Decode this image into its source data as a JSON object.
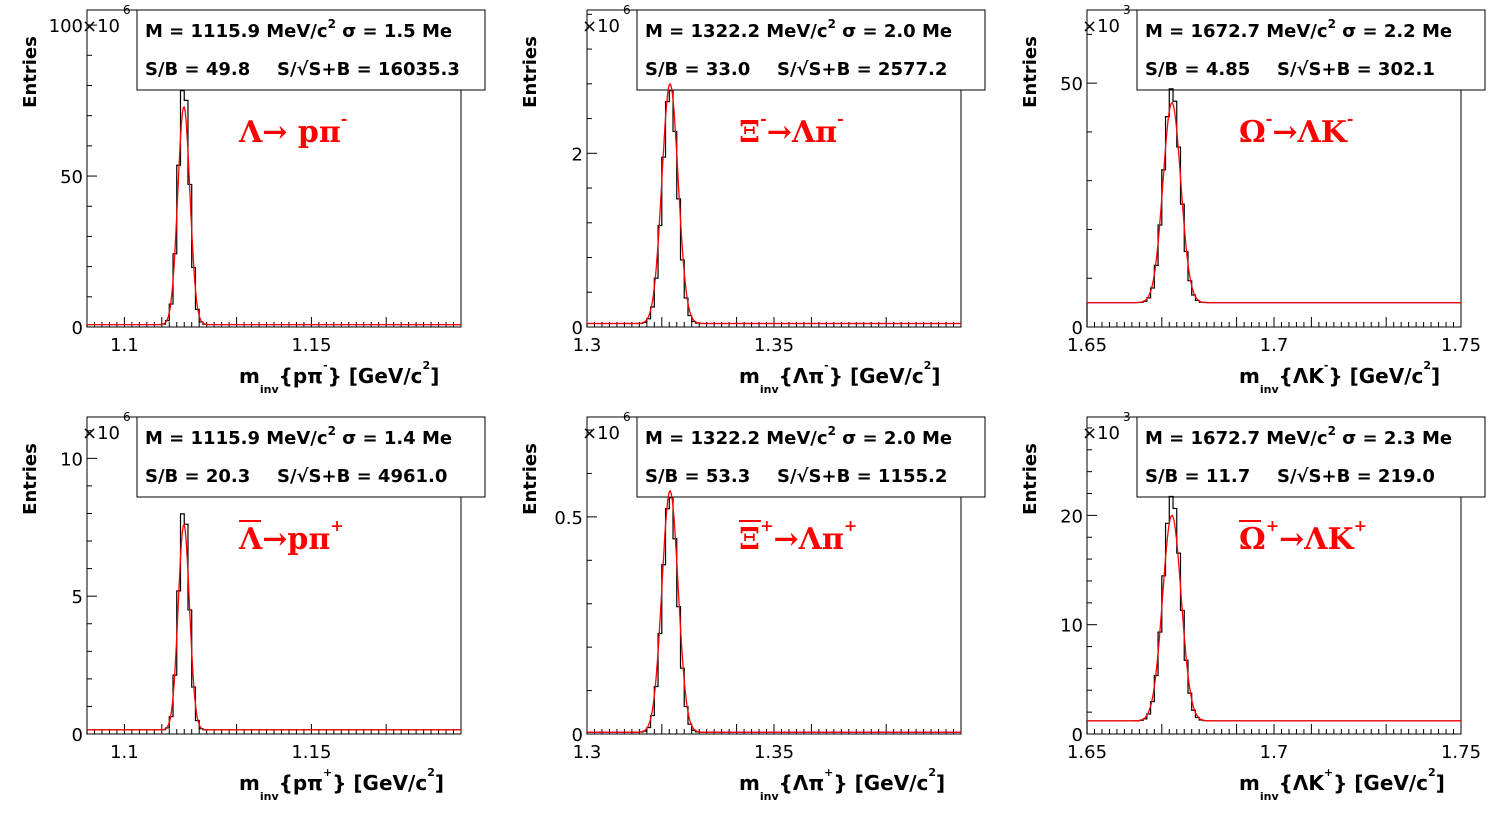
{
  "chart_data": [
    {
      "type": "line",
      "ylabel": "Entries",
      "xlabel": "m_inv{pπ⁻} [GeV/c²]",
      "xlabel_parts": {
        "main": "m",
        "sub": "inv",
        "rest": "{pπ",
        "sup": "-",
        "close": "} [GeV/c",
        "sup2": "2",
        "end": "]"
      },
      "y_multiplier_base": "×10",
      "y_multiplier_exp": "6",
      "xlim": [
        1.09,
        1.19
      ],
      "ylim": [
        0,
        105
      ],
      "xticks": [
        1.1,
        1.15
      ],
      "xtick_labels": [
        "1.1",
        "1.15"
      ],
      "yticks": [
        0,
        50,
        100
      ],
      "ytick_labels": [
        "0",
        "50",
        "100"
      ],
      "stats": {
        "line1": "M = 1115.9 MeV/c",
        "line1_sup": "2",
        "line1_rest": " σ = 1.5 Me",
        "line2": "S/B = 49.8",
        "line2_rest": "S/",
        "line2_sqrt": "S+B",
        "line2_val": " = 16035.3"
      },
      "annotation": {
        "main": "Λ→ pπ",
        "sup": "-",
        "bar": false
      },
      "peak_mass": 1.1159,
      "sigma": 0.0015,
      "fit_peak": 73,
      "hist_peak": 81,
      "background": 0.8,
      "series": [
        {
          "values": []
        }
      ]
    },
    {
      "type": "line",
      "ylabel": "Entries",
      "xlabel": "m_inv{Λπ⁻} [GeV/c²]",
      "xlabel_parts": {
        "main": "m",
        "sub": "inv",
        "rest": "{Λπ",
        "sup": "-",
        "close": "} [GeV/c",
        "sup2": "2",
        "end": "]"
      },
      "y_multiplier_base": "×10",
      "y_multiplier_exp": "6",
      "xlim": [
        1.3,
        1.4
      ],
      "ylim": [
        0,
        3.65
      ],
      "xticks": [
        1.3,
        1.35
      ],
      "xtick_labels": [
        "1.3",
        "1.35"
      ],
      "yticks": [
        0,
        2
      ],
      "ytick_labels": [
        "0",
        "2"
      ],
      "stats": {
        "line1": "M = 1322.2 MeV/c",
        "line1_sup": "2",
        "line1_rest": " σ = 2.0 Me",
        "line2": "S/B = 33.0",
        "line2_rest": "S/",
        "line2_sqrt": "S+B",
        "line2_val": " = 2577.2"
      },
      "annotation": {
        "main": "Ξ",
        "sup": "-",
        "main2": "→Λπ",
        "sup2": "-",
        "bar": false
      },
      "peak_mass": 1.3222,
      "sigma": 0.002,
      "fit_peak": 2.8,
      "hist_peak": 2.75,
      "background": 0.04
    },
    {
      "type": "line",
      "ylabel": "Entries",
      "xlabel": "m_inv{ΛK⁻} [GeV/c²]",
      "xlabel_parts": {
        "main": "m",
        "sub": "inv",
        "rest": "{ΛK",
        "sup": "-",
        "close": "} [GeV/c",
        "sup2": "2",
        "end": "]"
      },
      "y_multiplier_base": "×10",
      "y_multiplier_exp": "3",
      "xlim": [
        1.65,
        1.75
      ],
      "ylim": [
        0,
        65
      ],
      "xticks": [
        1.65,
        1.7,
        1.75
      ],
      "xtick_labels": [
        "1.65",
        "1.7",
        "1.75"
      ],
      "yticks": [
        0,
        50
      ],
      "ytick_labels": [
        "0",
        "50"
      ],
      "stats": {
        "line1": "M = 1672.7 MeV/c",
        "line1_sup": "2",
        "line1_rest": " σ = 2.2 Me",
        "line2": "S/B = 4.85",
        "line2_rest": "S/",
        "line2_sqrt": "S+B",
        "line2_val": " = 302.1"
      },
      "annotation": {
        "main": "Ω",
        "sup": "-",
        "main2": "→ΛK",
        "sup2": "-",
        "bar": false
      },
      "peak_mass": 1.6727,
      "sigma": 0.0022,
      "fit_peak": 46,
      "hist_peak": 49,
      "background": 5
    },
    {
      "type": "line",
      "ylabel": "Entries",
      "xlabel": "m_inv{p̄π⁺} [GeV/c²]",
      "xlabel_parts": {
        "main": "m",
        "sub": "inv",
        "rest": "{pπ",
        "sup": "+",
        "close": "} [GeV/c",
        "sup2": "2",
        "end": "]"
      },
      "y_multiplier_base": "×10",
      "y_multiplier_exp": "6",
      "xlim": [
        1.09,
        1.19
      ],
      "ylim": [
        0,
        11.5
      ],
      "xticks": [
        1.1,
        1.15
      ],
      "xtick_labels": [
        "1.1",
        "1.15"
      ],
      "yticks": [
        0,
        5,
        10
      ],
      "ytick_labels": [
        "0",
        "5",
        "10"
      ],
      "stats": {
        "line1": "M = 1115.9 MeV/c",
        "line1_sup": "2",
        "line1_rest": " σ = 1.4 Me",
        "line2": "S/B = 20.3",
        "line2_rest": "S/",
        "line2_sqrt": "S+B",
        "line2_val": " = 4961.0"
      },
      "annotation": {
        "main": "Λ→pπ",
        "sup": "+",
        "bar": true
      },
      "peak_mass": 1.1159,
      "sigma": 0.0014,
      "fit_peak": 7.6,
      "hist_peak": 8.3,
      "background": 0.15
    },
    {
      "type": "line",
      "ylabel": "Entries",
      "xlabel": "m_inv{Λ̄π⁺} [GeV/c²]",
      "xlabel_parts": {
        "main": "m",
        "sub": "inv",
        "rest": "{Λπ",
        "sup": "+",
        "close": "} [GeV/c",
        "sup2": "2",
        "end": "]"
      },
      "y_multiplier_base": "×10",
      "y_multiplier_exp": "6",
      "xlim": [
        1.3,
        1.4
      ],
      "ylim": [
        0,
        0.73
      ],
      "xticks": [
        1.3,
        1.35
      ],
      "xtick_labels": [
        "1.3",
        "1.35"
      ],
      "yticks": [
        0,
        0.5
      ],
      "ytick_labels": [
        "0",
        "0.5"
      ],
      "stats": {
        "line1": "M = 1322.2 MeV/c",
        "line1_sup": "2",
        "line1_rest": " σ = 2.0 Me",
        "line2": "S/B = 53.3",
        "line2_rest": "S/",
        "line2_sqrt": "S+B",
        "line2_val": " = 1155.2"
      },
      "annotation": {
        "main": "Ξ",
        "sup": "+",
        "main2": "→Λπ",
        "sup2": "+",
        "bar": true
      },
      "peak_mass": 1.3222,
      "sigma": 0.002,
      "fit_peak": 0.56,
      "hist_peak": 0.55,
      "background": 0.004
    },
    {
      "type": "line",
      "ylabel": "Entries",
      "xlabel": "m_inv{Λ̄K⁺} [GeV/c²]",
      "xlabel_parts": {
        "main": "m",
        "sub": "inv",
        "rest": "{ΛK",
        "sup": "+",
        "close": "} [GeV/c",
        "sup2": "2",
        "end": "]"
      },
      "y_multiplier_base": "×10",
      "y_multiplier_exp": "3",
      "xlim": [
        1.65,
        1.75
      ],
      "ylim": [
        0,
        29
      ],
      "xticks": [
        1.65,
        1.7,
        1.75
      ],
      "xtick_labels": [
        "1.65",
        "1.7",
        "1.75"
      ],
      "yticks": [
        0,
        10,
        20
      ],
      "ytick_labels": [
        "0",
        "10",
        "20"
      ],
      "stats": {
        "line1": "M = 1672.7 MeV/c",
        "line1_sup": "2",
        "line1_rest": " σ = 2.3 Me",
        "line2": "S/B = 11.7",
        "line2_rest": "S/",
        "line2_sqrt": "S+B",
        "line2_val": " = 219.0"
      },
      "annotation": {
        "main": "Ω",
        "sup": "+",
        "main2": "→ΛK",
        "sup2": "+",
        "bar": true
      },
      "peak_mass": 1.6727,
      "sigma": 0.0023,
      "fit_peak": 20,
      "hist_peak": 21.8,
      "background": 1.2
    }
  ],
  "colors": {
    "hist": "#000000",
    "fit": "#ff0000",
    "annotation": "#ff0000"
  }
}
